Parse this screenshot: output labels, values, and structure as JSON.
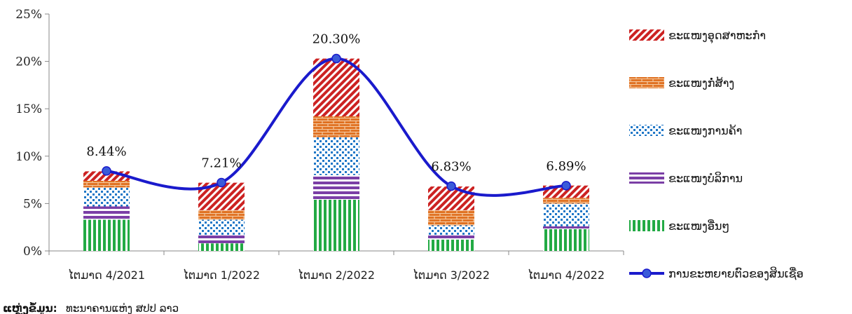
{
  "chart_data": {
    "type": "bar",
    "stacked": true,
    "title": "",
    "xlabel": "",
    "ylabel": "",
    "ylim": [
      0,
      25
    ],
    "yticks": [
      0,
      5,
      10,
      15,
      20,
      25
    ],
    "ytick_labels": [
      "0%",
      "5%",
      "10%",
      "15%",
      "20%",
      "25%"
    ],
    "grid": false,
    "legend_position": "right",
    "categories": [
      "ໄຕມາດ 4/2021",
      "ໄຕມາດ 1/2022",
      "ໄຕມາດ 2/2022",
      "ໄຕມາດ 3/2022",
      "ໄຕມາດ 4/2022"
    ],
    "series": [
      {
        "name": "ຂະແໜງອື່ນໆ",
        "pattern": "green-stripes",
        "color": "#22aa44",
        "values": [
          3.3,
          0.8,
          5.4,
          1.2,
          2.3
        ]
      },
      {
        "name": "ຂະແໜງບໍລິການ",
        "pattern": "purple-bands",
        "color": "#7b3fa6",
        "values": [
          1.4,
          0.9,
          2.6,
          0.5,
          0.3
        ]
      },
      {
        "name": "ຂະແໜງການຄ້າ",
        "pattern": "blue-dots",
        "color": "#1f77c7",
        "values": [
          2.0,
          1.6,
          4.0,
          1.0,
          2.4
        ]
      },
      {
        "name": "ຂະແໜງກໍ່ສ້າງ",
        "pattern": "orange-bricks",
        "color": "#e07020",
        "values": [
          0.7,
          1.0,
          2.2,
          1.6,
          0.6
        ]
      },
      {
        "name": "ຂະແໜງອຸດສາຫະກຳ",
        "pattern": "red-diagonal",
        "color": "#cc2222",
        "values": [
          1.0,
          2.9,
          6.1,
          2.5,
          1.3
        ]
      }
    ],
    "line": {
      "name": "ການຂະຫຍາຍຕົວຂອງສິນເຊື່ອ",
      "color": "#1a1acc",
      "values": [
        8.44,
        7.21,
        20.3,
        6.83,
        6.89
      ],
      "labels": [
        "8.44%",
        "7.21%",
        "20.30%",
        "6.83%",
        "6.89%"
      ]
    }
  },
  "source": {
    "label": "ແຫຼ່ງຂໍ້ມູນ:",
    "text": "ທະນາຄານແຫ່ງ ສປປ ລາວ"
  }
}
